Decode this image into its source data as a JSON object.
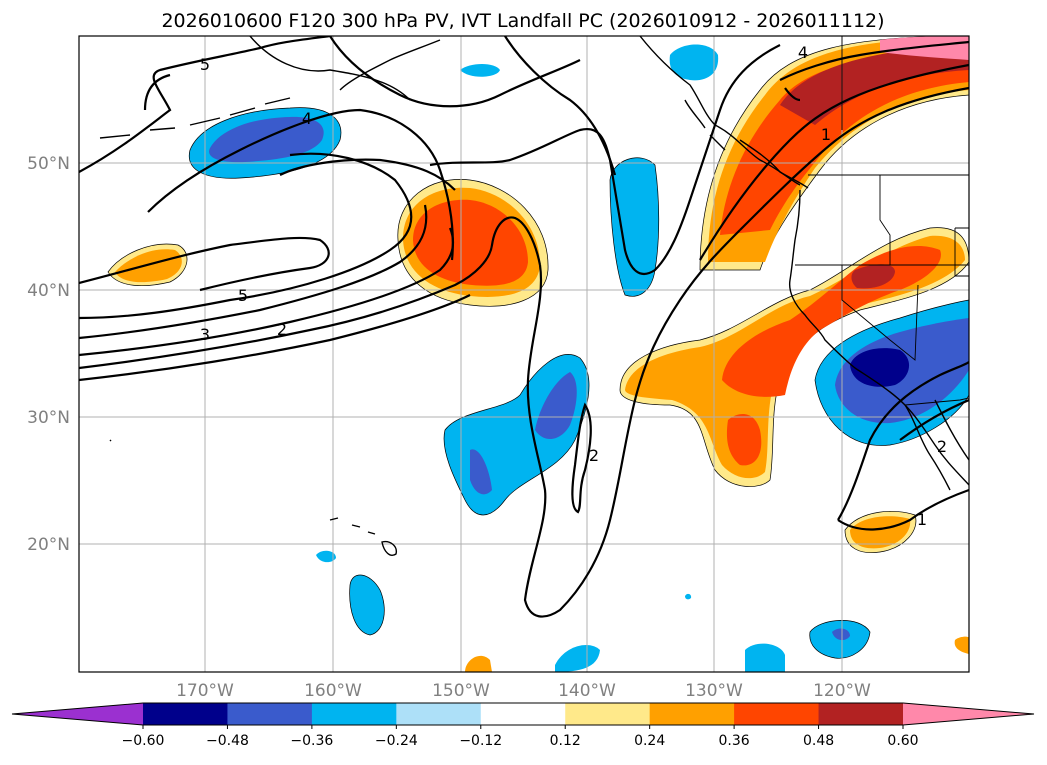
{
  "title": "2026010600 F120 300 hPa PV, IVT Landfall PC (2026010912 - 2026011112)",
  "map": {
    "lon_range": [
      -180,
      -110
    ],
    "lat_range": [
      10,
      60
    ],
    "lat_ticks": [
      "50°N",
      "40°N",
      "30°N",
      "20°N"
    ],
    "lon_ticks": [
      "170°W",
      "160°W",
      "150°W",
      "140°W",
      "130°W",
      "120°W"
    ]
  },
  "contour_labels": [
    "5",
    "4",
    "5",
    "3",
    "2",
    "2",
    "4",
    "1",
    "2",
    "1"
  ],
  "colorbar": {
    "colors": [
      "#9b30d0",
      "#00008b",
      "#3a5bcc",
      "#00b4f0",
      "#ade0f8",
      "#ffffff",
      "#ffe98a",
      "#ffa000",
      "#ff4500",
      "#b22222",
      "#ff88aa"
    ],
    "tick_labels": [
      "−0.60",
      "−0.48",
      "−0.36",
      "−0.24",
      "−0.12",
      "0.12",
      "0.24",
      "0.36",
      "0.48",
      "0.60"
    ]
  }
}
